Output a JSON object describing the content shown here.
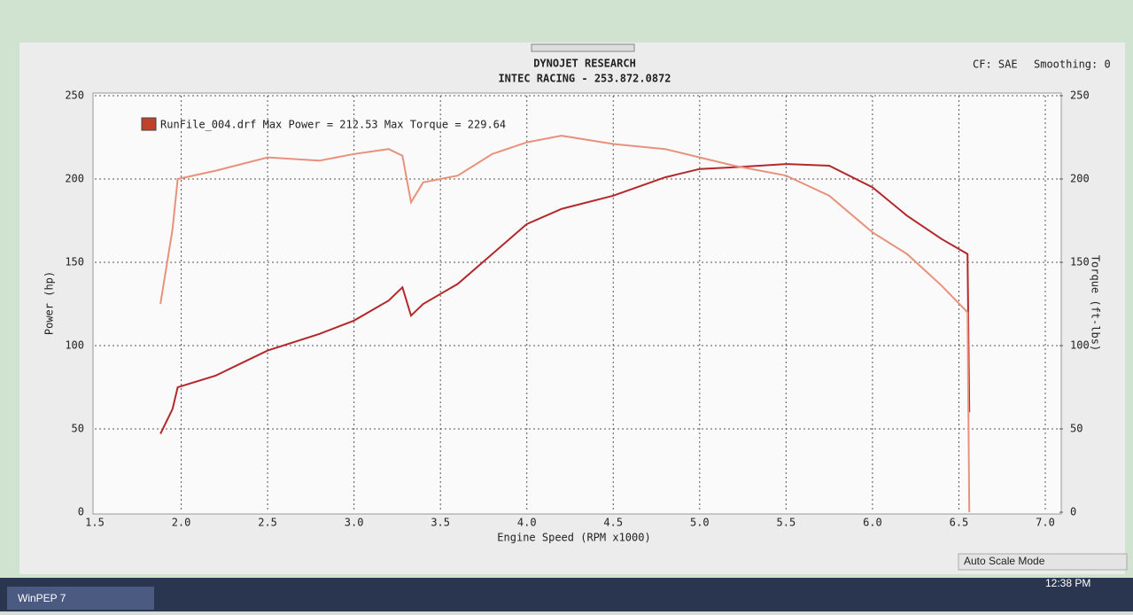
{
  "chart_data": {
    "type": "line",
    "title": "DYNOJET RESEARCH",
    "subtitle": "INTEC RACING - 253.872.0872",
    "legend": "RunFile_004.drf Max Power = 212.53 Max Torque = 229.64",
    "legend_color": "#c0402a",
    "xlabel": "Engine Speed (RPM x1000)",
    "ylabel": "Power (hp)",
    "y2label": "Torque (ft-lbs)",
    "x": [
      1.88,
      1.95,
      1.98,
      2.2,
      2.5,
      2.8,
      3.0,
      3.2,
      3.28,
      3.33,
      3.4,
      3.6,
      3.8,
      4.0,
      4.2,
      4.5,
      4.8,
      5.0,
      5.2,
      5.5,
      5.75,
      6.0,
      6.2,
      6.4,
      6.55,
      6.56
    ],
    "series": [
      {
        "color": "#b3282a",
        "values": [
          47,
          62,
          75,
          82,
          97,
          107,
          115,
          127,
          135,
          118,
          125,
          137,
          155,
          173,
          182,
          190,
          201,
          206,
          207,
          209,
          208,
          195,
          178,
          164,
          155,
          60
        ]
      },
      {
        "color": "#e8917c",
        "axis": "y2",
        "values": [
          125,
          170,
          200,
          205,
          213,
          211,
          215,
          218,
          214,
          186,
          198,
          202,
          215,
          222,
          226,
          221,
          218,
          213,
          208,
          202,
          190,
          168,
          155,
          136,
          120,
          0
        ]
      }
    ],
    "xlim": [
      1.5,
      7.0
    ],
    "xticks": [
      1.5,
      {
        "value": 2,
        "label": "2.0"
      },
      2.5,
      {
        "value": 3,
        "label": "3.0"
      },
      3.5,
      {
        "value": 4,
        "label": "4.0"
      },
      4.5,
      {
        "value": 5,
        "label": "5.0"
      },
      5.5,
      {
        "value": 6,
        "label": "6.0"
      },
      6.5,
      {
        "value": 7,
        "label": "7.0"
      }
    ],
    "ylim": [
      0,
      250
    ],
    "yticks": [
      0,
      50,
      100,
      150,
      200,
      250
    ],
    "y2lim": [
      0,
      250
    ],
    "y2ticks": [
      0,
      50,
      100,
      150,
      200,
      250
    ],
    "grid": true
  },
  "ui": {
    "correction": "CF: SAE",
    "smoothing": "Smoothing: 0",
    "status": "Auto Scale Mode",
    "clock": "12:38 PM",
    "taskbar": "WinPEP 7"
  }
}
